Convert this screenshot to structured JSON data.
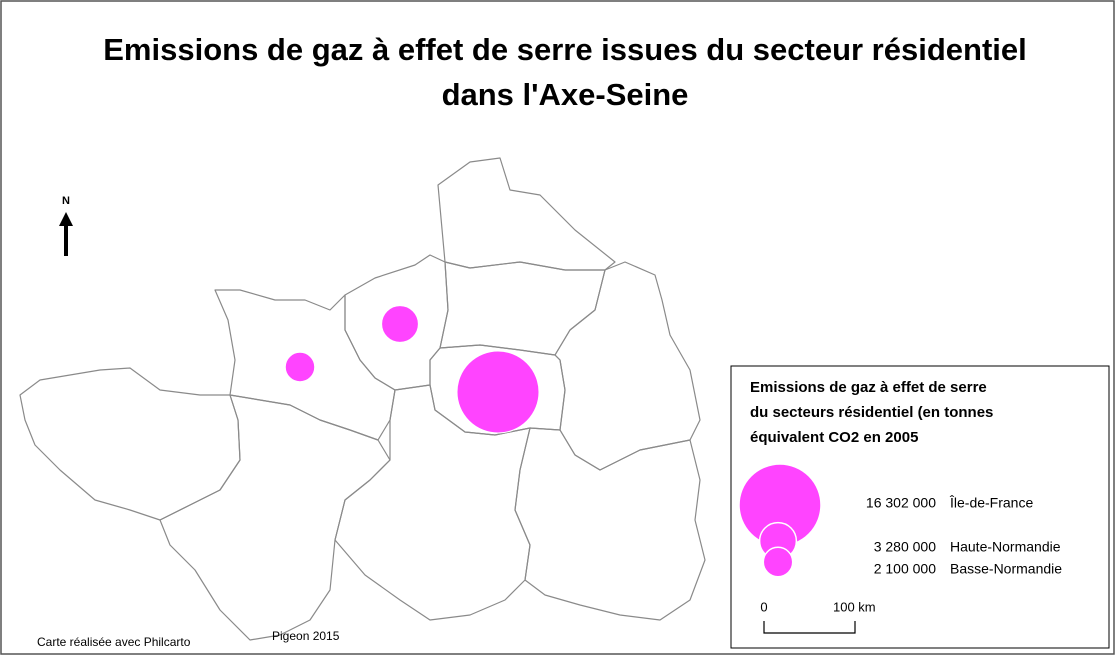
{
  "title": [
    "Emissions de gaz à effet de serre issues du secteur résidentiel",
    "dans l'Axe-Seine"
  ],
  "north": "N",
  "legend": {
    "title": [
      "Emissions de gaz à effet de serre",
      "du secteurs résidentiel (en tonnes",
      "équivalent CO2 en 2005"
    ],
    "items": [
      {
        "value": 16302000,
        "label": "16 302 000",
        "region": "Île-de-France"
      },
      {
        "value": 3280000,
        "label": "3 280 000",
        "region": "Haute-Normandie"
      },
      {
        "value": 2100000,
        "label": "2 100 000",
        "region": "Basse-Normandie"
      }
    ],
    "color": "#ff44ff",
    "scale": [
      "0",
      "100 km"
    ]
  },
  "credits": [
    "Carte réalisée avec Philcarto",
    "Pigeon 2015"
  ]
}
